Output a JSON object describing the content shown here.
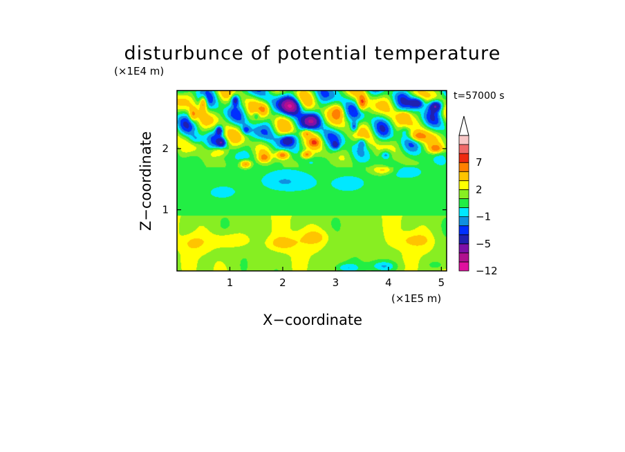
{
  "chart_data": {
    "type": "heatmap",
    "title": "disturbunce of potential temperature",
    "xlabel": "X−coordinate",
    "ylabel": "Z−coordinate",
    "x_unit": "(×1E5 m)",
    "y_unit": "(×1E4 m)",
    "time_label": "t=57000 s",
    "xlim": [
      0,
      5.1
    ],
    "ylim": [
      0,
      2.95
    ],
    "x_ticks": [
      {
        "value": 1,
        "label": "1"
      },
      {
        "value": 2,
        "label": "2"
      },
      {
        "value": 3,
        "label": "3"
      },
      {
        "value": 4,
        "label": "4"
      },
      {
        "value": 5,
        "label": "5"
      }
    ],
    "y_ticks": [
      {
        "value": 1,
        "label": "1"
      },
      {
        "value": 2,
        "label": "2"
      }
    ],
    "colorbar": {
      "levels": [
        -12,
        -9,
        -7,
        -5,
        -3,
        -2,
        -1,
        0,
        1,
        2,
        3,
        5,
        7,
        9,
        12
      ],
      "colors": [
        "#e0109f",
        "#b0108f",
        "#7e10a8",
        "#2020b0",
        "#0030ff",
        "#1090e0",
        "#00e8ff",
        "#22ee44",
        "#88ee22",
        "#ffff00",
        "#ffc400",
        "#ff8000",
        "#ee2a10",
        "#f06a6a",
        "#f8c8c8"
      ],
      "extend": "max",
      "tick_labels": [
        {
          "value": 7,
          "label": "7"
        },
        {
          "value": 2,
          "label": "2"
        },
        {
          "value": -1,
          "label": "−1"
        },
        {
          "value": -5,
          "label": "−5"
        },
        {
          "value": -12,
          "label": "−12"
        }
      ]
    },
    "features": [
      {
        "x": 2.15,
        "z": 2.7,
        "amp": -8,
        "sx": 0.18,
        "sz": 0.13
      },
      {
        "x": 2.55,
        "z": 2.45,
        "amp": -6,
        "sx": 0.16,
        "sz": 0.12
      },
      {
        "x": 2.1,
        "z": 2.15,
        "amp": -5,
        "sx": 0.15,
        "sz": 0.1
      },
      {
        "x": 1.1,
        "z": 2.8,
        "amp": -5,
        "sx": 0.08,
        "sz": 0.09
      },
      {
        "x": 0.8,
        "z": 2.3,
        "amp": -5,
        "sx": 0.07,
        "sz": 0.08
      },
      {
        "x": 0.85,
        "z": 2.1,
        "amp": -4,
        "sx": 0.08,
        "sz": 0.07
      },
      {
        "x": 4.55,
        "z": 2.75,
        "amp": -6,
        "sx": 0.13,
        "sz": 0.09
      },
      {
        "x": 4.9,
        "z": 2.7,
        "amp": -6,
        "sx": 0.13,
        "sz": 0.09
      },
      {
        "x": 3.35,
        "z": 2.35,
        "amp": -4,
        "sx": 0.07,
        "sz": 0.08
      },
      {
        "x": 3.5,
        "z": 2.1,
        "amp": -3,
        "sx": 0.08,
        "sz": 0.08
      },
      {
        "x": 3.95,
        "z": 1.9,
        "amp": -3,
        "sx": 0.1,
        "sz": 0.07
      },
      {
        "x": 3.0,
        "z": 2.05,
        "amp": -3,
        "sx": 0.08,
        "sz": 0.07
      },
      {
        "x": 1.3,
        "z": 2.3,
        "amp": -3,
        "sx": 0.08,
        "sz": 0.07
      },
      {
        "x": 1.5,
        "z": 2.55,
        "amp": -3,
        "sx": 0.08,
        "sz": 0.07
      },
      {
        "x": 0.35,
        "z": 2.15,
        "amp": -2,
        "sx": 0.12,
        "sz": 0.08
      },
      {
        "x": 4.3,
        "z": 2.3,
        "amp": -2,
        "sx": 0.1,
        "sz": 0.08
      },
      {
        "x": 2.0,
        "z": 1.45,
        "amp": -1.5,
        "sx": 0.45,
        "sz": 0.15
      },
      {
        "x": 0.9,
        "z": 1.3,
        "amp": -1.3,
        "sx": 0.3,
        "sz": 0.12
      },
      {
        "x": 3.3,
        "z": 1.45,
        "amp": -1.2,
        "sx": 0.3,
        "sz": 0.12
      },
      {
        "x": 4.3,
        "z": 1.6,
        "amp": -1.3,
        "sx": 0.35,
        "sz": 0.12
      },
      {
        "x": 0.5,
        "z": 2.75,
        "amp": 6,
        "sx": 0.07,
        "sz": 0.12
      },
      {
        "x": 0.3,
        "z": 2.55,
        "amp": 4,
        "sx": 0.07,
        "sz": 0.1
      },
      {
        "x": 2.0,
        "z": 1.9,
        "amp": 6,
        "sx": 0.12,
        "sz": 0.07
      },
      {
        "x": 2.45,
        "z": 1.9,
        "amp": 5,
        "sx": 0.1,
        "sz": 0.06
      },
      {
        "x": 1.3,
        "z": 1.75,
        "amp": 5,
        "sx": 0.1,
        "sz": 0.06
      },
      {
        "x": 1.65,
        "z": 1.85,
        "amp": 4,
        "sx": 0.1,
        "sz": 0.07
      },
      {
        "x": 2.6,
        "z": 2.1,
        "amp": 4,
        "sx": 0.1,
        "sz": 0.07
      },
      {
        "x": 2.45,
        "z": 2.25,
        "amp": 4,
        "sx": 0.1,
        "sz": 0.06
      },
      {
        "x": 3.5,
        "z": 2.75,
        "amp": 6,
        "sx": 0.08,
        "sz": 0.12
      },
      {
        "x": 4.55,
        "z": 2.2,
        "amp": 5,
        "sx": 0.15,
        "sz": 0.08
      },
      {
        "x": 4.9,
        "z": 2.0,
        "amp": 5,
        "sx": 0.12,
        "sz": 0.07
      },
      {
        "x": 4.3,
        "z": 2.55,
        "amp": 3,
        "sx": 0.12,
        "sz": 0.08
      },
      {
        "x": 1.65,
        "z": 2.65,
        "amp": 3,
        "sx": 0.1,
        "sz": 0.1
      },
      {
        "x": 3.05,
        "z": 2.6,
        "amp": 3,
        "sx": 0.1,
        "sz": 0.1
      },
      {
        "x": 0.8,
        "z": 1.95,
        "amp": 3,
        "sx": 0.15,
        "sz": 0.07
      },
      {
        "x": 3.9,
        "z": 1.65,
        "amp": 2.5,
        "sx": 0.2,
        "sz": 0.07
      },
      {
        "x": 1.0,
        "z": 0.5,
        "amp": 1.8,
        "sx": 0.4,
        "sz": 0.12
      },
      {
        "x": 2.0,
        "z": 0.45,
        "amp": 1.6,
        "sx": 0.35,
        "sz": 0.12
      },
      {
        "x": 2.6,
        "z": 0.55,
        "amp": 1.6,
        "sx": 0.3,
        "sz": 0.12
      },
      {
        "x": 4.5,
        "z": 0.5,
        "amp": 1.6,
        "sx": 0.3,
        "sz": 0.12
      },
      {
        "x": 0.3,
        "z": 0.45,
        "amp": 1.4,
        "sx": 0.2,
        "sz": 0.12
      },
      {
        "x": 3.2,
        "z": 0.05,
        "amp": -2.2,
        "sx": 0.25,
        "sz": 0.08
      },
      {
        "x": 3.9,
        "z": 0.08,
        "amp": -2.2,
        "sx": 0.25,
        "sz": 0.08
      },
      {
        "x": 4.9,
        "z": 0.1,
        "amp": -1.6,
        "sx": 0.15,
        "sz": 0.07
      }
    ]
  }
}
